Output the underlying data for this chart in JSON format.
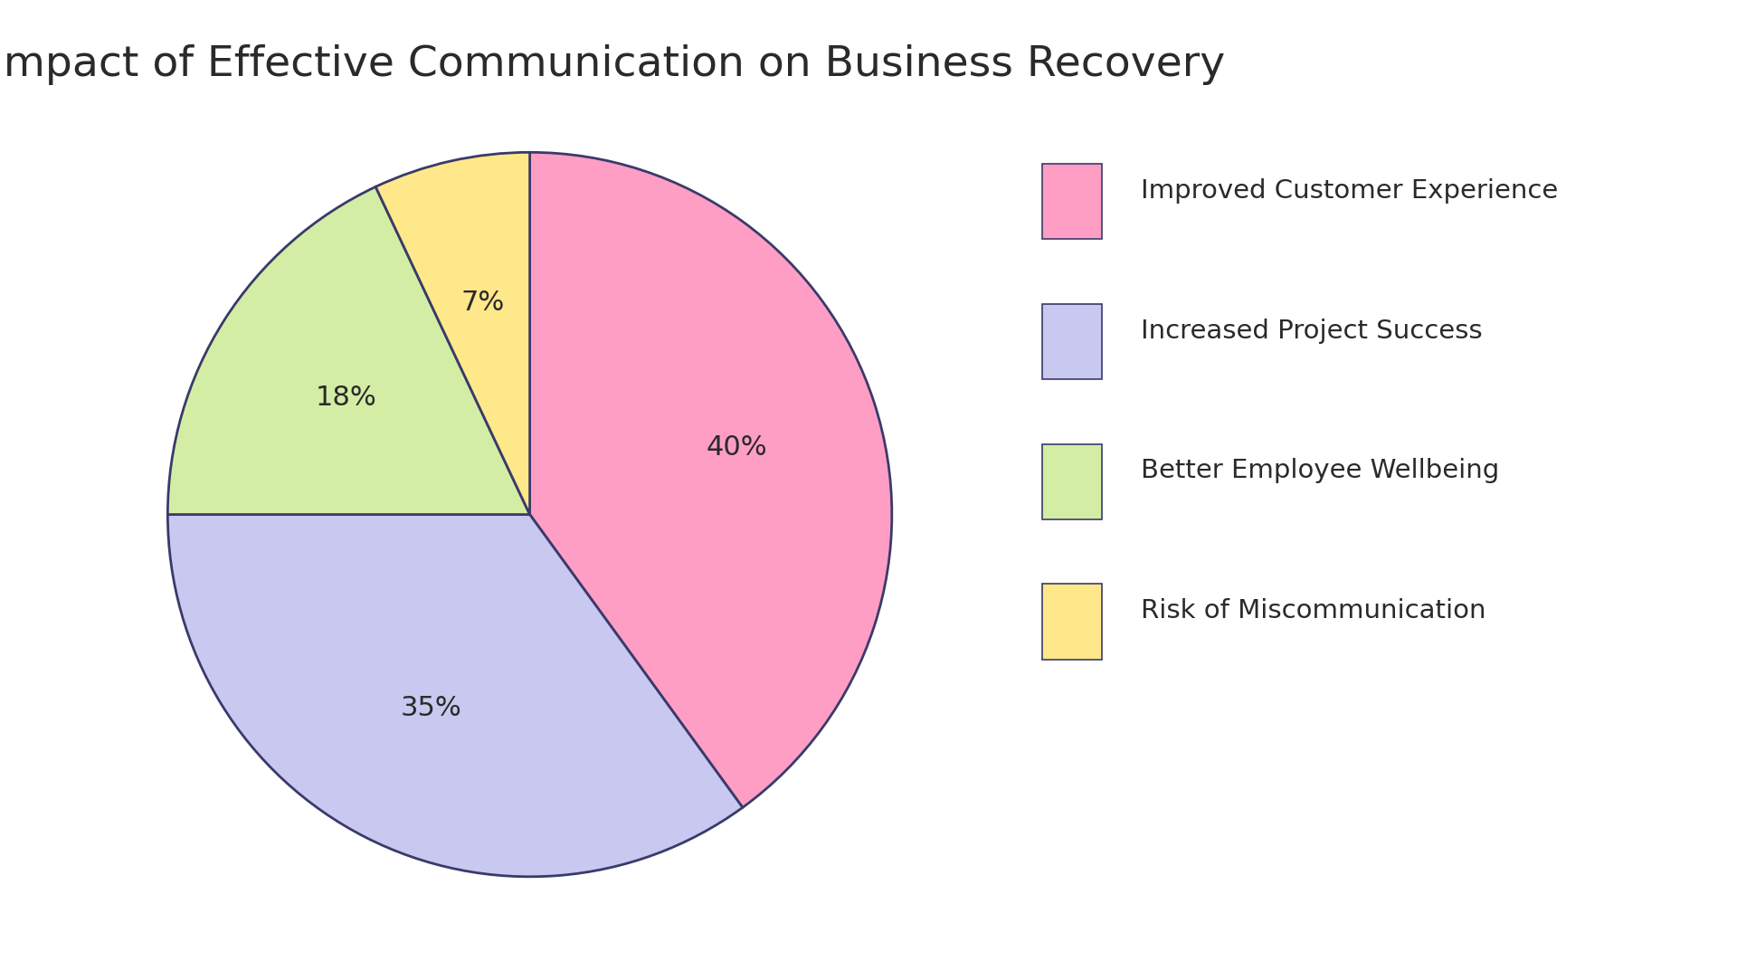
{
  "title": "Impact of Effective Communication on Business Recovery",
  "segments": [
    {
      "label": "Improved Customer Experience",
      "value": 40,
      "color": "#FF9EC4",
      "text_pct": "40%"
    },
    {
      "label": "Increased Project Success",
      "value": 35,
      "color": "#C8C8F0",
      "text_pct": "35%"
    },
    {
      "label": "Better Employee Wellbeing",
      "value": 18,
      "color": "#D4EDA4",
      "text_pct": "18%"
    },
    {
      "label": "Risk of Miscommunication",
      "value": 7,
      "color": "#FFE88A",
      "text_pct": "7%"
    }
  ],
  "title_fontsize": 34,
  "pct_fontsize": 22,
  "legend_fontsize": 21,
  "edge_color": "#3A3A6A",
  "edge_width": 2.0,
  "background_color": "#FFFFFF",
  "text_color": "#2A2A2A",
  "startangle": 90
}
